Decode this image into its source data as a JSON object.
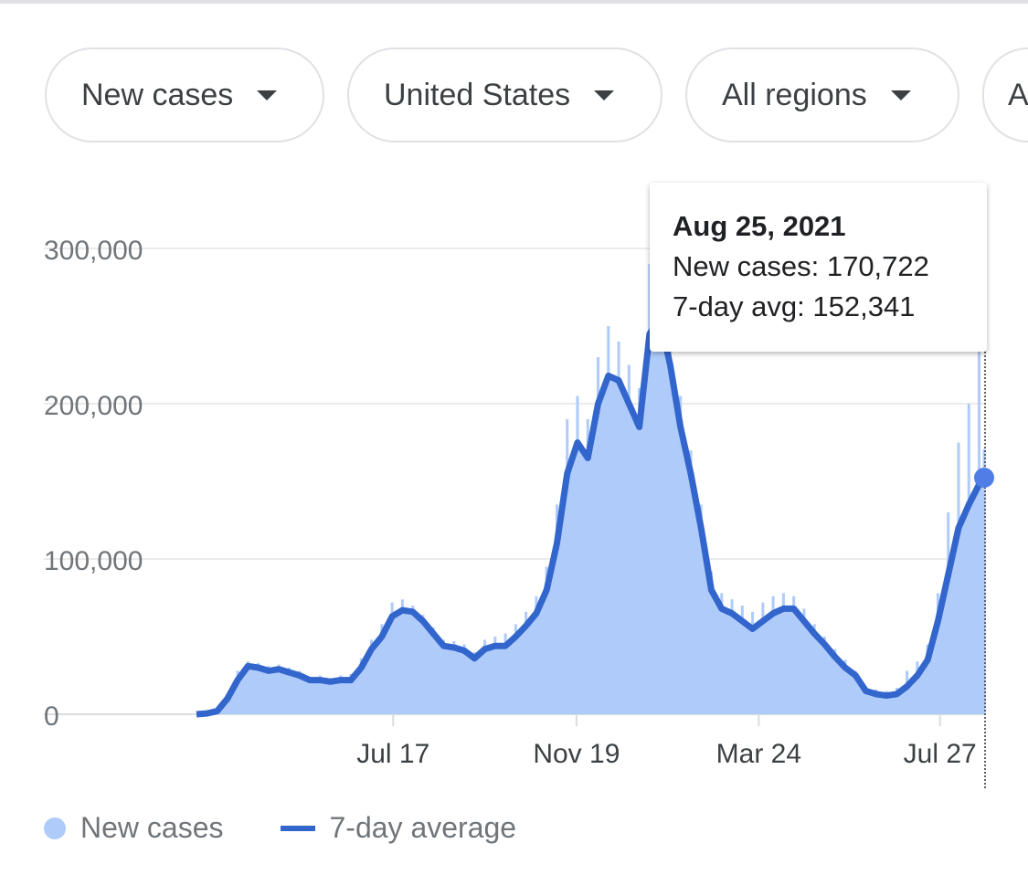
{
  "filters": [
    {
      "label": "New cases"
    },
    {
      "label": "United States"
    },
    {
      "label": "All regions"
    },
    {
      "label": "A"
    }
  ],
  "tooltip": {
    "date": "Aug 25, 2021",
    "new_cases": "New cases: 170,722",
    "avg": "7-day avg: 152,341"
  },
  "legend": {
    "new_cases": "New cases",
    "avg": "7-day average"
  },
  "colors": {
    "bars": "#aecbfa",
    "line": "#3366cc",
    "dot": "#4f7fe6"
  },
  "chart_data": {
    "type": "line",
    "title": "",
    "xlabel": "",
    "ylabel": "",
    "ylim": [
      0,
      300000
    ],
    "yticks": [
      {
        "v": 0,
        "label": "0"
      },
      {
        "v": 100000,
        "label": "100,000"
      },
      {
        "v": 200000,
        "label": "200,000"
      },
      {
        "v": 300000,
        "label": "300,000"
      }
    ],
    "xticks": [
      {
        "week": 19.1,
        "label": "Jul 17"
      },
      {
        "week": 36.9,
        "label": "Nov 19"
      },
      {
        "week": 54.6,
        "label": "Mar 24"
      },
      {
        "week": 72.2,
        "label": "Jul 27"
      }
    ],
    "x_unit": "weeks since Mar 5, 2020",
    "series": [
      {
        "name": "7-day average",
        "values": [
          0,
          500,
          2000,
          10000,
          22000,
          31000,
          30000,
          28000,
          29000,
          27000,
          25000,
          22000,
          22000,
          21000,
          22000,
          22000,
          30000,
          42000,
          50000,
          63000,
          67000,
          66000,
          60000,
          52000,
          44000,
          43000,
          41000,
          36000,
          42000,
          44000,
          44000,
          50000,
          57000,
          65000,
          80000,
          110000,
          155000,
          175000,
          165000,
          200000,
          218000,
          215000,
          200000,
          185000,
          245000,
          255000,
          225000,
          185000,
          155000,
          120000,
          80000,
          68000,
          65000,
          60000,
          55000,
          60000,
          65000,
          68000,
          68000,
          60000,
          52000,
          45000,
          37000,
          30000,
          25000,
          15000,
          13000,
          12000,
          13000,
          18000,
          25000,
          35000,
          60000,
          90000,
          120000,
          135000,
          148000,
          152341
        ]
      },
      {
        "name": "New cases",
        "values": [
          0,
          800,
          3000,
          13000,
          28000,
          34000,
          33000,
          31000,
          32000,
          30000,
          28000,
          24000,
          25000,
          23000,
          25000,
          26000,
          36000,
          48000,
          58000,
          72000,
          74000,
          70000,
          64000,
          56000,
          48000,
          47000,
          45000,
          40000,
          48000,
          50000,
          52000,
          58000,
          66000,
          76000,
          95000,
          135000,
          190000,
          205000,
          190000,
          230000,
          250000,
          240000,
          225000,
          210000,
          290000,
          280000,
          250000,
          205000,
          170000,
          135000,
          92000,
          78000,
          74000,
          70000,
          66000,
          72000,
          76000,
          78000,
          76000,
          68000,
          58000,
          50000,
          42000,
          35000,
          28000,
          18000,
          16000,
          15000,
          17000,
          28000,
          34000,
          45000,
          78000,
          130000,
          175000,
          200000,
          240000,
          170722
        ]
      }
    ],
    "highlight": {
      "date": "Aug 25, 2021",
      "new_cases": 170722,
      "avg": 152341
    },
    "legend_position": "bottom-left",
    "grid": true
  }
}
